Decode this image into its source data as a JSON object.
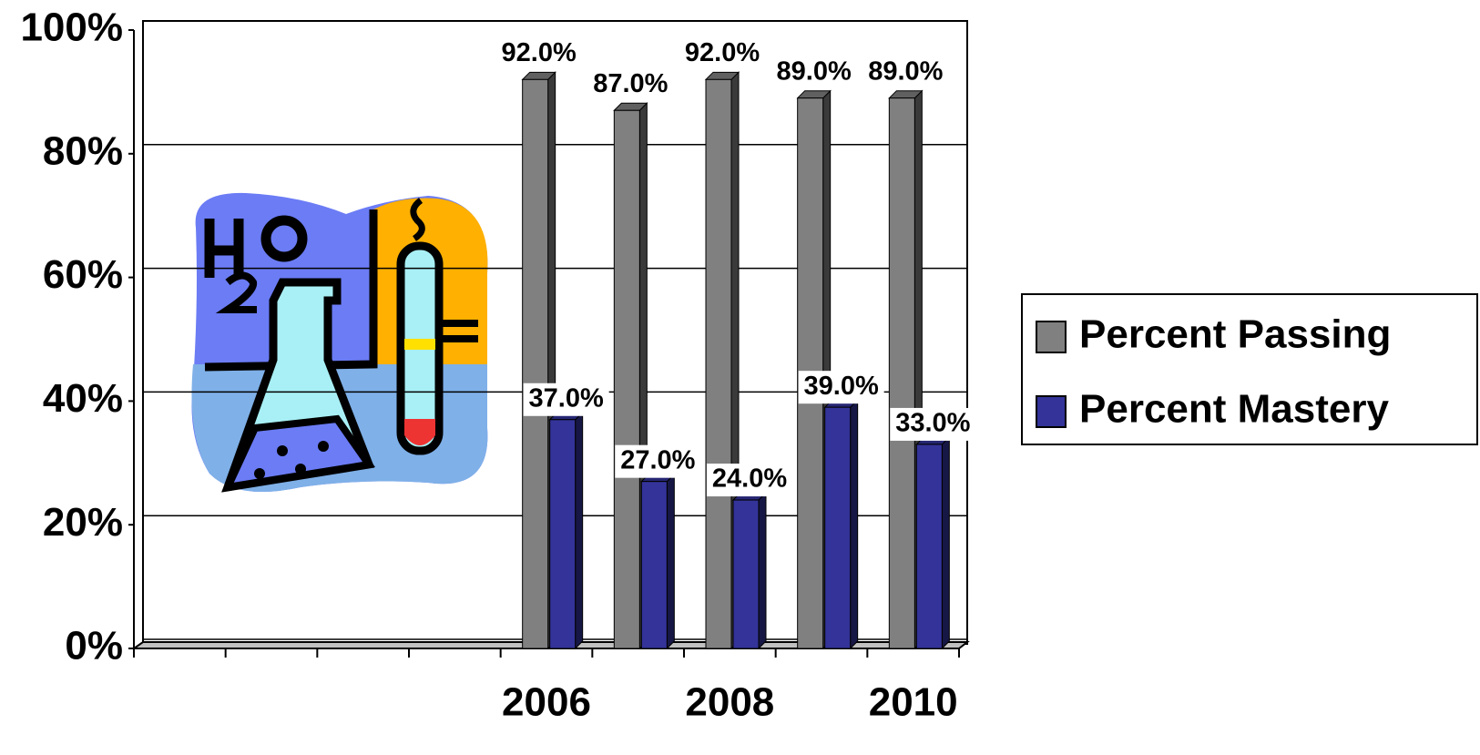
{
  "chart_data": {
    "type": "bar",
    "categories": [
      null,
      null,
      null,
      null,
      "2006",
      null,
      "2008",
      null,
      "2010"
    ],
    "series": [
      {
        "name": "Percent Passing",
        "color": "#808080",
        "values": [
          null,
          null,
          null,
          null,
          92,
          87,
          92,
          89,
          89
        ],
        "value_labels": [
          null,
          null,
          null,
          null,
          "92.0%",
          "87.0%",
          "92.0%",
          "89.0%",
          "89.0%"
        ]
      },
      {
        "name": "Percent Mastery",
        "color": "#333399",
        "values": [
          null,
          null,
          null,
          null,
          37,
          27,
          24,
          39,
          33
        ],
        "value_labels": [
          null,
          null,
          null,
          null,
          "37.0%",
          "27.0%",
          "24.0%",
          "39.0%",
          "33.0%"
        ]
      }
    ],
    "ylim": [
      0,
      100
    ],
    "yticks": [
      {
        "value": 0,
        "label": "0%"
      },
      {
        "value": 20,
        "label": "20%"
      },
      {
        "value": 40,
        "label": "40%"
      },
      {
        "value": 60,
        "label": "60%"
      },
      {
        "value": 80,
        "label": "80%"
      },
      {
        "value": 100,
        "label": "100%"
      }
    ],
    "grid": true,
    "legend": "right"
  }
}
